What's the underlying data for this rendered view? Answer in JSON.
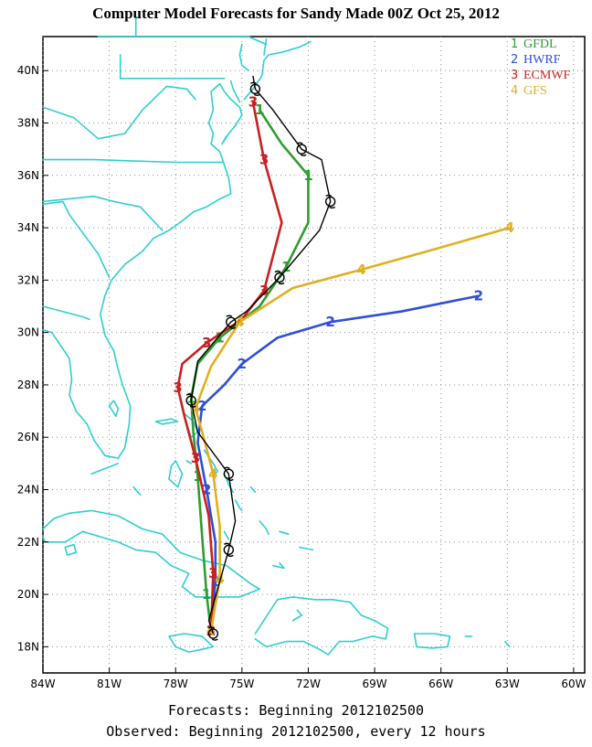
{
  "title": "Computer Model Forecasts for Sandy Made 00Z Oct 25, 2012",
  "footer": {
    "line1": "Forecasts: Beginning 2012102500",
    "line2": "Observed: Beginning 2012102500, every 12 hours"
  },
  "map": {
    "lon_range": [
      -84,
      -59.5
    ],
    "lat_range": [
      17,
      41.3
    ],
    "x_ticks": [
      {
        "value": -84,
        "label": "84W"
      },
      {
        "value": -81,
        "label": "81W"
      },
      {
        "value": -78,
        "label": "78W"
      },
      {
        "value": -75,
        "label": "75W"
      },
      {
        "value": -72,
        "label": "72W"
      },
      {
        "value": -69,
        "label": "69W"
      },
      {
        "value": -66,
        "label": "66W"
      },
      {
        "value": -63,
        "label": "63W"
      },
      {
        "value": -60,
        "label": "60W"
      }
    ],
    "y_ticks": [
      {
        "value": 18,
        "label": "18N"
      },
      {
        "value": 20,
        "label": "20N"
      },
      {
        "value": 22,
        "label": "22N"
      },
      {
        "value": 24,
        "label": "24N"
      },
      {
        "value": 26,
        "label": "26N"
      },
      {
        "value": 28,
        "label": "28N"
      },
      {
        "value": 30,
        "label": "30N"
      },
      {
        "value": 32,
        "label": "32N"
      },
      {
        "value": 34,
        "label": "34N"
      },
      {
        "value": 36,
        "label": "36N"
      },
      {
        "value": 38,
        "label": "38N"
      },
      {
        "value": 40,
        "label": "40N"
      }
    ],
    "coast_color": "#2ecfcf",
    "grid_color": "#8c8c8c"
  },
  "legend": [
    {
      "num": "1",
      "name": "GFDL",
      "color": "#2e9e2e"
    },
    {
      "num": "2",
      "name": "HWRF",
      "color": "#2f4fd6"
    },
    {
      "num": "3",
      "name": "ECMWF",
      "color": "#cc1f1f"
    },
    {
      "num": "4",
      "name": "GFS",
      "color": "#e0b020"
    }
  ],
  "chart_data": {
    "type": "line",
    "series": [
      {
        "name": "GFDL",
        "marker": "1",
        "color": "#2e9e2e",
        "points": [
          [
            -76.4,
            18.6
          ],
          [
            -76.6,
            20.0
          ],
          [
            -76.8,
            22.2
          ],
          [
            -77.0,
            24.5
          ],
          [
            -77.2,
            26.2
          ],
          [
            -77.3,
            27.5
          ],
          [
            -77.0,
            28.8
          ],
          [
            -76.0,
            29.8
          ],
          [
            -74.2,
            31.0
          ],
          [
            -73.0,
            32.5
          ],
          [
            -72.0,
            34.2
          ],
          [
            -72.0,
            36.0
          ],
          [
            -73.2,
            37.2
          ],
          [
            -74.2,
            38.5
          ]
        ]
      },
      {
        "name": "HWRF",
        "marker": "2",
        "color": "#2f4fd6",
        "points": [
          [
            -76.4,
            18.6
          ],
          [
            -76.2,
            20.5
          ],
          [
            -76.2,
            22.0
          ],
          [
            -76.6,
            24.0
          ],
          [
            -77.0,
            25.8
          ],
          [
            -76.8,
            27.2
          ],
          [
            -75.8,
            28.0
          ],
          [
            -75.0,
            28.8
          ],
          [
            -73.4,
            29.8
          ],
          [
            -71.0,
            30.4
          ],
          [
            -67.8,
            30.8
          ],
          [
            -64.3,
            31.4
          ]
        ]
      },
      {
        "name": "ECMWF",
        "marker": "3",
        "color": "#cc1f1f",
        "points": [
          [
            -76.4,
            18.6
          ],
          [
            -76.3,
            20.8
          ],
          [
            -76.5,
            23.0
          ],
          [
            -77.1,
            25.2
          ],
          [
            -77.6,
            26.8
          ],
          [
            -77.9,
            27.9
          ],
          [
            -77.7,
            28.8
          ],
          [
            -76.6,
            29.6
          ],
          [
            -75.0,
            30.5
          ],
          [
            -74.0,
            31.6
          ],
          [
            -73.2,
            34.2
          ],
          [
            -74.0,
            36.6
          ],
          [
            -74.5,
            38.8
          ]
        ]
      },
      {
        "name": "GFS",
        "marker": "4",
        "color": "#e0b020",
        "points": [
          [
            -76.4,
            18.6
          ],
          [
            -76.0,
            20.6
          ],
          [
            -76.0,
            22.6
          ],
          [
            -76.3,
            24.6
          ],
          [
            -76.8,
            26.2
          ],
          [
            -77.1,
            27.1
          ],
          [
            -76.4,
            28.7
          ],
          [
            -75.1,
            30.4
          ],
          [
            -72.7,
            31.7
          ],
          [
            -69.6,
            32.4
          ],
          [
            -66.2,
            33.2
          ],
          [
            -62.9,
            34.0
          ]
        ]
      },
      {
        "name": "Observed",
        "marker": "",
        "color": "#000000",
        "points": [
          [
            -76.3,
            18.5
          ],
          [
            -76.5,
            19.0
          ],
          [
            -75.6,
            21.7
          ],
          [
            -75.3,
            22.8
          ],
          [
            -75.6,
            24.6
          ],
          [
            -77.0,
            26.2
          ],
          [
            -77.3,
            27.4
          ],
          [
            -77.0,
            28.9
          ],
          [
            -75.5,
            30.4
          ],
          [
            -74.8,
            30.8
          ],
          [
            -73.3,
            32.1
          ],
          [
            -71.5,
            33.9
          ],
          [
            -71.0,
            35.0
          ],
          [
            -71.4,
            36.6
          ],
          [
            -72.3,
            37.0
          ],
          [
            -73.6,
            38.5
          ],
          [
            -74.4,
            39.3
          ],
          [
            -74.5,
            39.8
          ]
        ]
      }
    ]
  }
}
